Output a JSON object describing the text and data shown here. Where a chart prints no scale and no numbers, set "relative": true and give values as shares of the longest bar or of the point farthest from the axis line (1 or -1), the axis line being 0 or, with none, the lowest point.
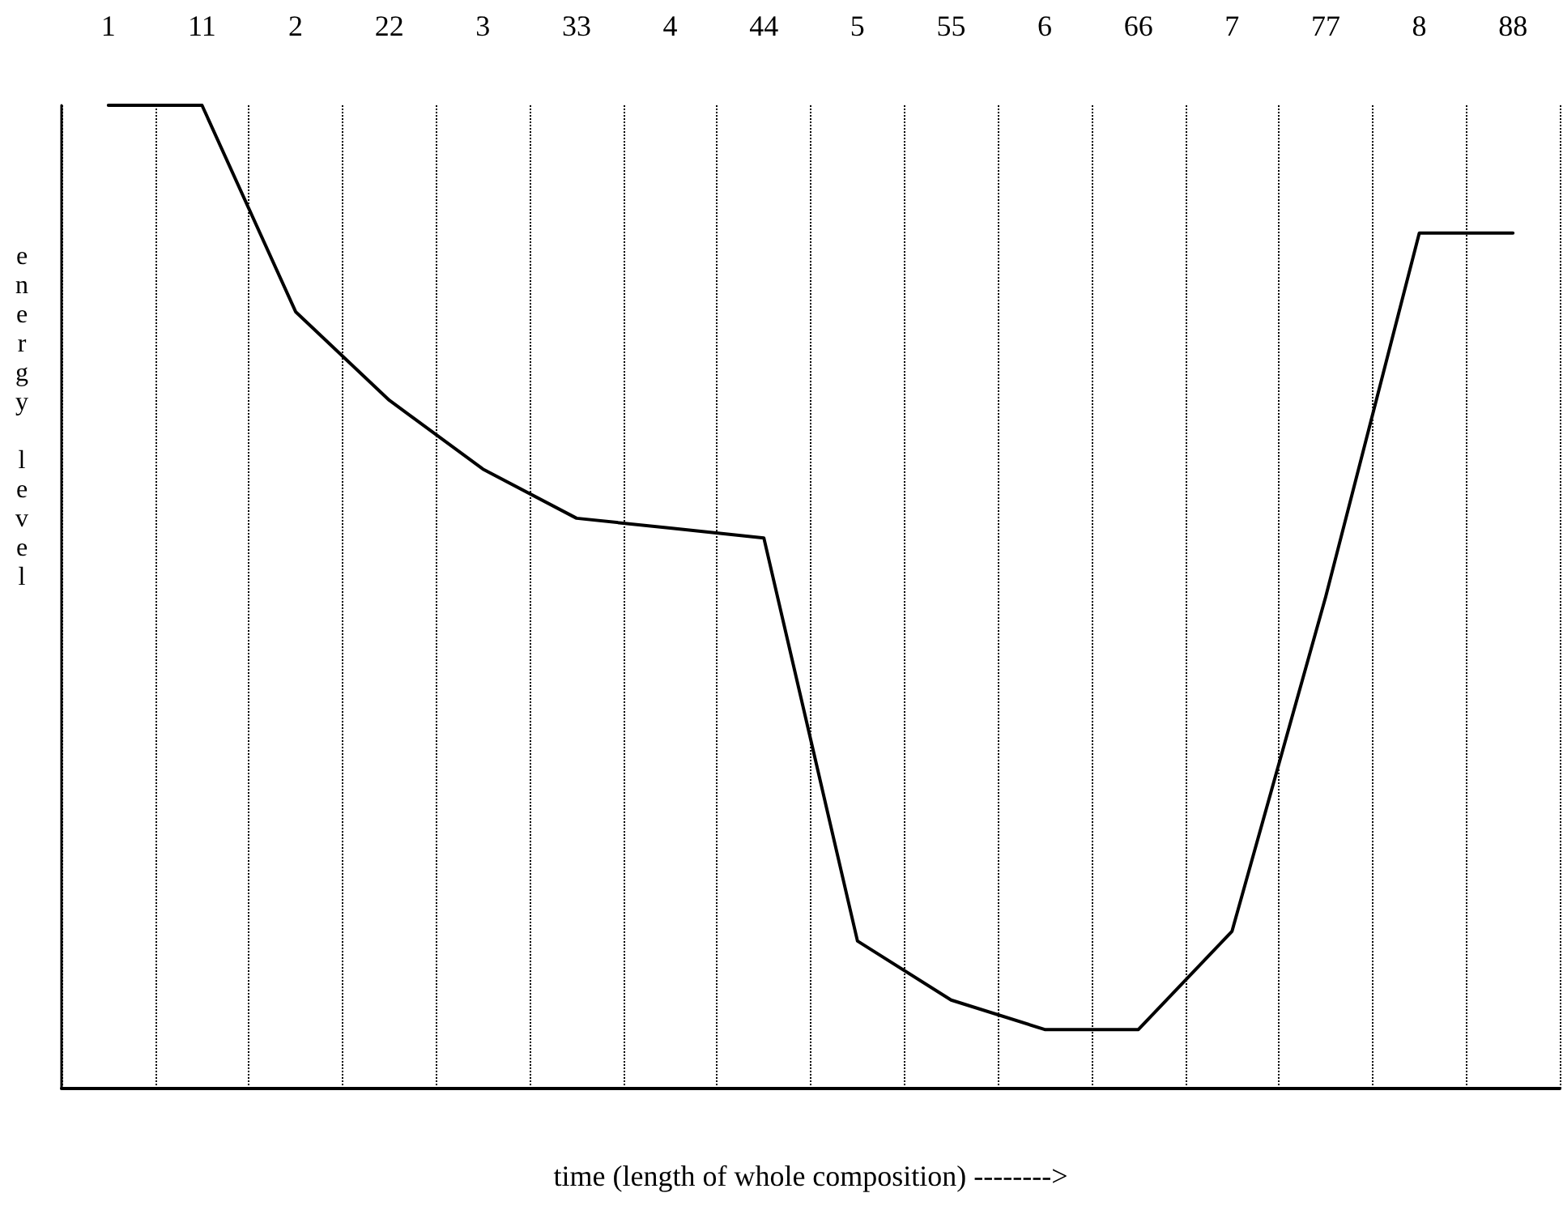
{
  "chart_data": {
    "type": "line",
    "relative": true,
    "xlabel": "time (length of whole composition) -------->",
    "ylabel": "energy level",
    "categories": [
      "1",
      "11",
      "2",
      "22",
      "3",
      "33",
      "4",
      "44",
      "5",
      "55",
      "6",
      "66",
      "7",
      "77",
      "8",
      "88"
    ],
    "series": [
      {
        "color": "#000000",
        "values": [
          1.0,
          1.0,
          0.79,
          0.7,
          0.63,
          0.58,
          0.57,
          0.56,
          0.15,
          0.09,
          0.06,
          0.06,
          0.16,
          0.5,
          0.87,
          0.87
        ]
      }
    ],
    "grid": "x",
    "marker": "none",
    "line_style": "solid"
  }
}
